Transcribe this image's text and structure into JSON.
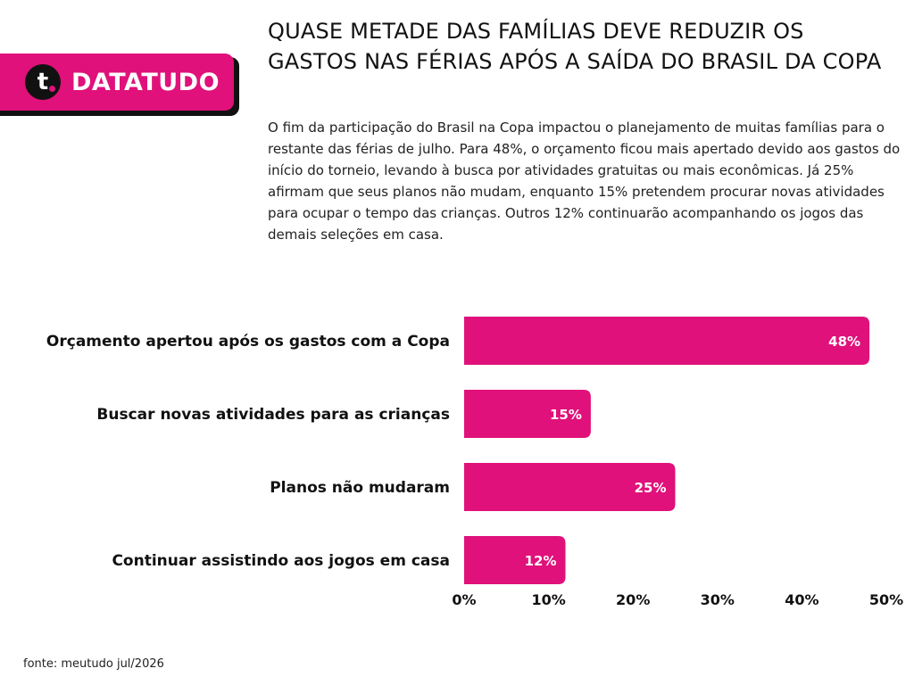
{
  "brand": {
    "logo_letter": "t",
    "name": "DATATUDO",
    "accent_color": "#e0117a"
  },
  "header": {
    "title": "QUASE METADE DAS FAMÍLIAS DEVE REDUZIR OS GASTOS NAS FÉRIAS APÓS A SAÍDA DO BRASIL DA COPA",
    "subtitle": "O fim da participação do Brasil na Copa impactou o planejamento de muitas famílias para o restante das férias de julho. Para 48%, o orçamento ficou mais apertado devido aos gastos do início do torneio, levando à busca por atividades gratuitas ou mais econômicas. Já 25% afirmam que seus planos não mudam, enquanto 15% pretendem procurar novas atividades para ocupar o tempo das crianças. Outros 12% continuarão acompanhando os jogos das demais seleções em casa."
  },
  "chart_data": {
    "type": "bar",
    "orientation": "horizontal",
    "categories": [
      "Orçamento apertou após os gastos com a Copa",
      "Buscar novas atividades para as crianças",
      "Planos não mudaram",
      "Continuar assistindo aos jogos em casa"
    ],
    "values": [
      48,
      15,
      25,
      12
    ],
    "value_labels": [
      "48%",
      "15%",
      "25%",
      "12%"
    ],
    "xlim": [
      0,
      50
    ],
    "x_ticks": [
      0,
      10,
      20,
      30,
      40,
      50
    ],
    "x_tick_labels": [
      "0%",
      "10%",
      "20%",
      "30%",
      "40%",
      "50%"
    ],
    "bar_color": "#e0117a",
    "grid": false
  },
  "footer": {
    "source": "fonte: meutudo jul/2026"
  }
}
